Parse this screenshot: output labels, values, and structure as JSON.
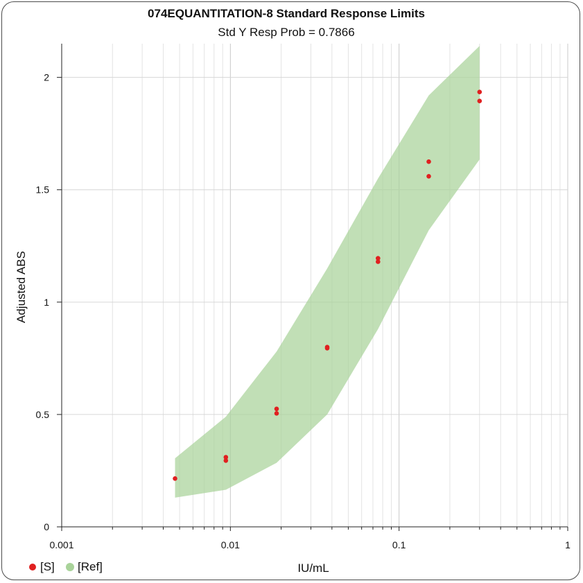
{
  "chart_data": {
    "type": "scatter",
    "title": "074EQUANTITATION-8 Standard Response Limits",
    "subtitle": "Std Y Resp Prob = 0.7866",
    "xlabel": "IU/mL",
    "ylabel": "Adjusted ABS",
    "xscale": "log",
    "xlim": [
      0.001,
      1
    ],
    "ylim": [
      0,
      2.15
    ],
    "x_ticks": [
      "0.001",
      "0.01",
      "0.1",
      "1"
    ],
    "y_ticks": [
      "0",
      "0.5",
      "1",
      "1.5",
      "2"
    ],
    "grid": true,
    "legend_position": "bottom-left",
    "series": [
      {
        "name": "[S]",
        "color": "#e02020",
        "x": [
          0.0047,
          0.0094,
          0.0094,
          0.0188,
          0.0188,
          0.0375,
          0.0375,
          0.075,
          0.075,
          0.15,
          0.15,
          0.3,
          0.3
        ],
        "y": [
          0.215,
          0.31,
          0.295,
          0.525,
          0.505,
          0.8,
          0.795,
          1.195,
          1.18,
          1.625,
          1.56,
          1.935,
          1.895
        ]
      }
    ],
    "band": {
      "name": "[Ref]",
      "color": "#a9d39a",
      "x": [
        0.0047,
        0.0094,
        0.0188,
        0.0375,
        0.075,
        0.15,
        0.3
      ],
      "upper": [
        0.305,
        0.49,
        0.78,
        1.15,
        1.55,
        1.92,
        2.14
      ],
      "lower": [
        0.13,
        0.165,
        0.285,
        0.5,
        0.88,
        1.32,
        1.635
      ]
    }
  }
}
